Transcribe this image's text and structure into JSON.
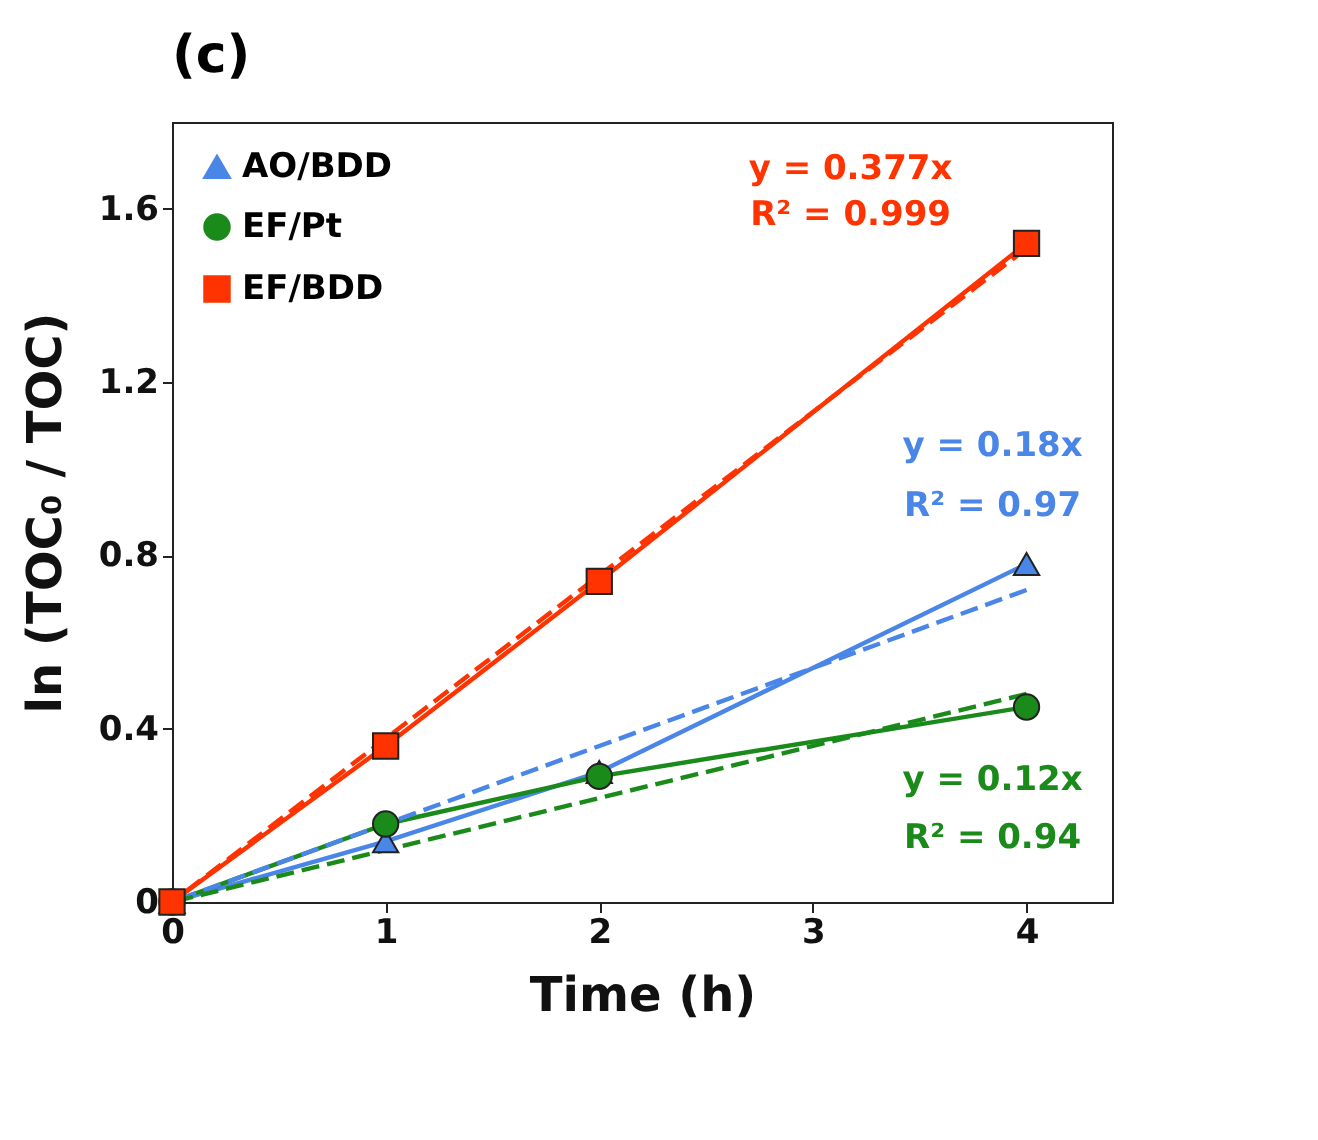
{
  "chart_data": {
    "type": "line",
    "title": "(c)",
    "xlabel": "Time (h)",
    "ylabel": "ln (TOC₀ / TOC)",
    "x": [
      0,
      1,
      2,
      4
    ],
    "xlim": [
      0,
      4.4
    ],
    "xticks": [
      0,
      1,
      2,
      3,
      4
    ],
    "ylim": [
      0,
      1.8
    ],
    "yticks": [
      0,
      0.4,
      0.8,
      1.2,
      1.6
    ],
    "grid": false,
    "legend": "top left",
    "series": [
      {
        "name": "AO/BDD",
        "color": "#4a86e8",
        "marker": "triangle",
        "values": [
          0,
          0.14,
          0.3,
          0.78
        ]
      },
      {
        "name": "EF/Pt",
        "color": "#1a8a1a",
        "marker": "circle",
        "values": [
          0,
          0.18,
          0.29,
          0.45
        ]
      },
      {
        "name": "EF/BDD",
        "color": "#ff3300",
        "marker": "square",
        "values": [
          0,
          0.36,
          0.74,
          1.52
        ]
      },
      {
        "color": "#ff3300",
        "marker": "none",
        "line_style": "dashed",
        "values": [
          0,
          0.377,
          0.754,
          1.508
        ]
      },
      {
        "color": "#4a86e8",
        "marker": "none",
        "line_style": "dashed",
        "values": [
          0,
          0.18,
          0.36,
          0.72
        ]
      },
      {
        "color": "#1a8a1a",
        "marker": "none",
        "line_style": "dashed",
        "values": [
          0,
          0.12,
          0.24,
          0.48
        ]
      }
    ],
    "annotations": [
      "y = 0.377x",
      "R² = 0.999",
      "y = 0.18x",
      "R² = 0.97",
      "y = 0.12x",
      "R² = 0.94"
    ]
  }
}
